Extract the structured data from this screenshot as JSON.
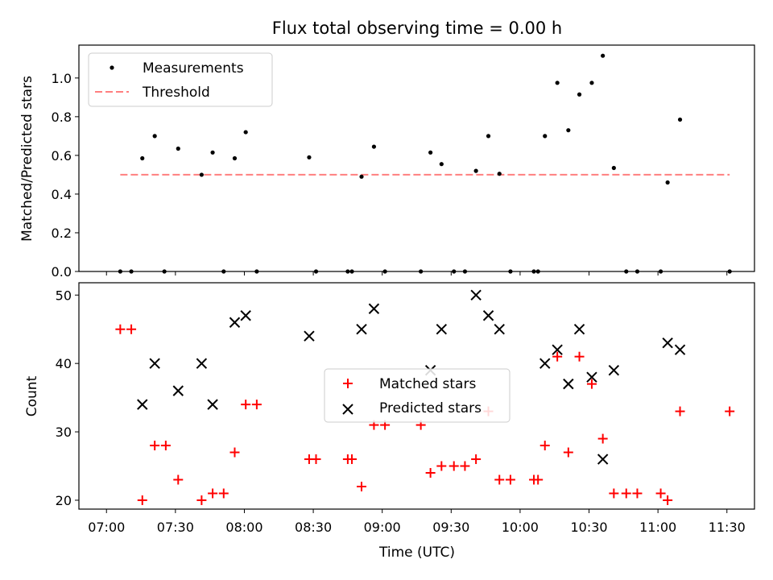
{
  "title": "Flux total observing time = 0.00 h",
  "chart_data": [
    {
      "type": "scatter",
      "ylabel": "Matched/Predicted stars",
      "ylim": [
        0,
        1.17
      ],
      "xlim": [
        -0.2,
        4.7
      ],
      "yticks": [
        0.0,
        0.2,
        0.4,
        0.6,
        0.8,
        1.0
      ],
      "ytick_labels": [
        "0.0",
        "0.2",
        "0.4",
        "0.6",
        "0.8",
        "1.0"
      ],
      "legend_position": "upper-left",
      "legend": [
        {
          "label": "Measurements",
          "marker": "dot",
          "color": "#000000"
        },
        {
          "label": "Threshold",
          "marker": "dashed-line",
          "color": "#ff7f7f"
        }
      ],
      "series": [
        {
          "name": "Measurements",
          "color": "#000000",
          "points": [
            [
              0.1,
              0.0
            ],
            [
              0.18,
              0.0
            ],
            [
              0.26,
              0.585
            ],
            [
              0.35,
              0.7
            ],
            [
              0.42,
              0.0
            ],
            [
              0.52,
              0.635
            ],
            [
              0.69,
              0.5
            ],
            [
              0.77,
              0.615
            ],
            [
              0.85,
              0.0
            ],
            [
              0.93,
              0.585
            ],
            [
              1.01,
              0.72
            ],
            [
              1.09,
              0.0
            ],
            [
              1.47,
              0.59
            ],
            [
              1.52,
              0.0
            ],
            [
              1.75,
              0.0
            ],
            [
              1.78,
              0.0
            ],
            [
              1.85,
              0.49
            ],
            [
              1.94,
              0.645
            ],
            [
              2.02,
              0.0
            ],
            [
              2.28,
              0.0
            ],
            [
              2.35,
              0.615
            ],
            [
              2.43,
              0.555
            ],
            [
              2.52,
              0.0
            ],
            [
              2.6,
              0.0
            ],
            [
              2.68,
              0.52
            ],
            [
              2.77,
              0.7
            ],
            [
              2.85,
              0.505
            ],
            [
              2.93,
              0.0
            ],
            [
              3.1,
              0.0
            ],
            [
              3.13,
              0.0
            ],
            [
              3.18,
              0.7
            ],
            [
              3.27,
              0.975
            ],
            [
              3.35,
              0.73
            ],
            [
              3.43,
              0.915
            ],
            [
              3.52,
              0.975
            ],
            [
              3.6,
              1.115
            ],
            [
              3.68,
              0.535
            ],
            [
              3.77,
              0.0
            ],
            [
              3.85,
              0.0
            ],
            [
              4.02,
              0.0
            ],
            [
              4.07,
              0.46
            ],
            [
              4.16,
              0.785
            ],
            [
              4.52,
              0.0
            ]
          ]
        },
        {
          "name": "Threshold",
          "color": "#ff7f7f",
          "line": [
            [
              0.1,
              0.5
            ],
            [
              4.52,
              0.5
            ]
          ]
        }
      ]
    },
    {
      "type": "scatter",
      "xlabel": "Time (UTC)",
      "ylabel": "Count",
      "ylim": [
        18.7,
        51.8
      ],
      "xlim": [
        -0.2,
        4.7
      ],
      "yticks": [
        20,
        30,
        40,
        50
      ],
      "ytick_labels": [
        "20",
        "30",
        "40",
        "50"
      ],
      "xticks": [
        0,
        0.5,
        1.0,
        1.5,
        2.0,
        2.5,
        3.0,
        3.5,
        4.0,
        4.5
      ],
      "xtick_labels": [
        "07:00",
        "07:30",
        "08:00",
        "08:30",
        "09:00",
        "09:30",
        "10:00",
        "10:30",
        "11:00",
        "11:30"
      ],
      "legend_position": "center",
      "legend": [
        {
          "label": "Matched stars",
          "marker": "plus",
          "color": "#ff0000"
        },
        {
          "label": "Predicted stars",
          "marker": "x",
          "color": "#000000"
        }
      ],
      "series": [
        {
          "name": "Matched stars",
          "color": "#ff0000",
          "points": [
            [
              0.1,
              45
            ],
            [
              0.18,
              45
            ],
            [
              0.26,
              20
            ],
            [
              0.35,
              28
            ],
            [
              0.43,
              28
            ],
            [
              0.52,
              23
            ],
            [
              0.69,
              20
            ],
            [
              0.77,
              21
            ],
            [
              0.85,
              21
            ],
            [
              0.93,
              27
            ],
            [
              1.01,
              34
            ],
            [
              1.09,
              34
            ],
            [
              1.47,
              26
            ],
            [
              1.52,
              26
            ],
            [
              1.75,
              26
            ],
            [
              1.78,
              26
            ],
            [
              1.85,
              22
            ],
            [
              1.94,
              31
            ],
            [
              2.02,
              31
            ],
            [
              2.28,
              31
            ],
            [
              2.35,
              24
            ],
            [
              2.43,
              25
            ],
            [
              2.52,
              25
            ],
            [
              2.6,
              25
            ],
            [
              2.68,
              26
            ],
            [
              2.77,
              33
            ],
            [
              2.85,
              23
            ],
            [
              2.93,
              23
            ],
            [
              3.1,
              23
            ],
            [
              3.13,
              23
            ],
            [
              3.18,
              28
            ],
            [
              3.27,
              41
            ],
            [
              3.35,
              27
            ],
            [
              3.43,
              41
            ],
            [
              3.52,
              37
            ],
            [
              3.6,
              29
            ],
            [
              3.68,
              21
            ],
            [
              3.77,
              21
            ],
            [
              3.85,
              21
            ],
            [
              4.02,
              21
            ],
            [
              4.07,
              20
            ],
            [
              4.16,
              33
            ],
            [
              4.52,
              33
            ]
          ]
        },
        {
          "name": "Predicted stars",
          "color": "#000000",
          "points": [
            [
              0.26,
              34
            ],
            [
              0.35,
              40
            ],
            [
              0.52,
              36
            ],
            [
              0.69,
              40
            ],
            [
              0.77,
              34
            ],
            [
              0.93,
              46
            ],
            [
              1.01,
              47
            ],
            [
              1.47,
              44
            ],
            [
              1.85,
              45
            ],
            [
              1.94,
              48
            ],
            [
              2.35,
              39
            ],
            [
              2.43,
              45
            ],
            [
              2.68,
              50
            ],
            [
              2.77,
              47
            ],
            [
              2.85,
              45
            ],
            [
              3.18,
              40
            ],
            [
              3.27,
              42
            ],
            [
              3.35,
              37
            ],
            [
              3.43,
              45
            ],
            [
              3.52,
              38
            ],
            [
              3.6,
              26
            ],
            [
              3.68,
              39
            ],
            [
              4.07,
              43
            ],
            [
              4.16,
              42
            ]
          ]
        }
      ]
    }
  ]
}
